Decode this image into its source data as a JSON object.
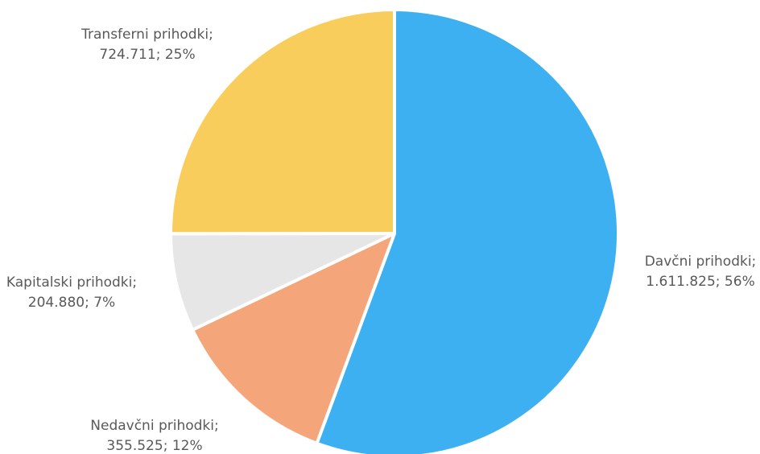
{
  "chart_data": {
    "type": "pie",
    "categories": [
      "Davčni prihodki",
      "Nedavčni prihodki",
      "Kapitalski prihodki",
      "Transferni prihodki"
    ],
    "values": [
      1611825,
      355525,
      204880,
      724711
    ],
    "value_labels": [
      "1.611.825",
      "355.525",
      "204.880",
      "724.711"
    ],
    "percent_labels": [
      "56%",
      "12%",
      "7%",
      "25%"
    ],
    "colors": [
      "#3DB0F2",
      "#F4A67A",
      "#E6E6E6",
      "#F9CD5C"
    ],
    "start_angle_deg": 0,
    "direction": "clockwise",
    "legend": "none",
    "data_labels": "outside",
    "title": ""
  }
}
